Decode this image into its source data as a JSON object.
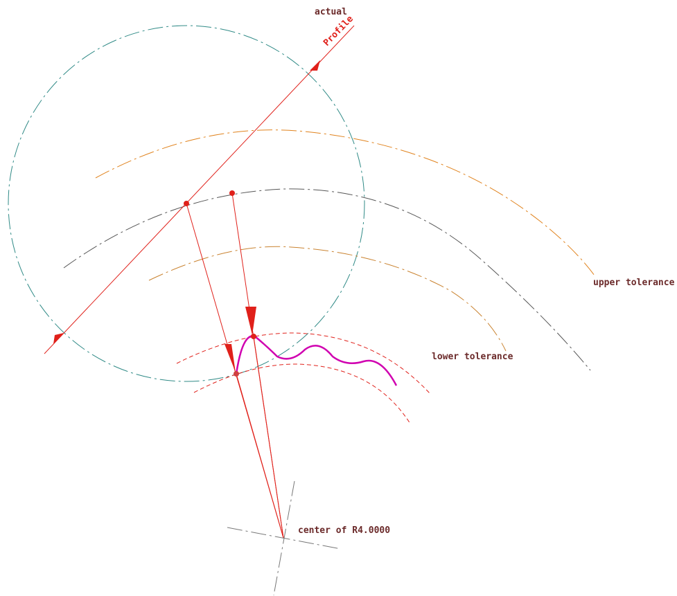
{
  "labels": {
    "actual": "actual",
    "profile": "Profile",
    "upper_tolerance": "upper tolerance",
    "lower_tolerance": "lower tolerance",
    "center": "center of R4.0000"
  },
  "colors": {
    "large_circle": "#2f8a86",
    "upper_band": "#e0821c",
    "nominal_arc": "#555555",
    "lower_band": "#c9822f",
    "zone_arcs": "#e0201a",
    "profile_line": "#e0201a",
    "actual_profile": "#d000b0",
    "center_lines": "#777777",
    "text": "#6b2a2a"
  }
}
